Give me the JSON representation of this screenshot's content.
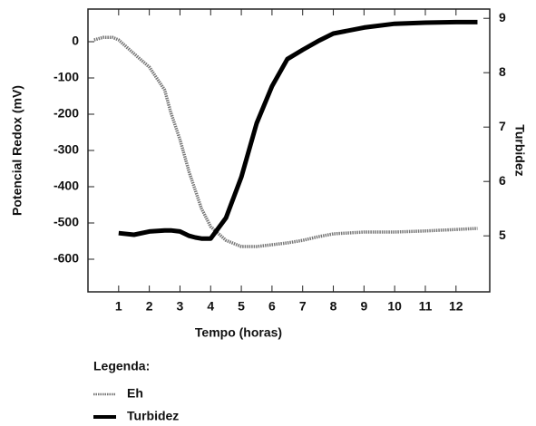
{
  "chart_data": {
    "type": "line",
    "xlabel": "Tempo (horas)",
    "ylabel": "Potencial Redox (mV)",
    "y2label": "Turbidez",
    "legend_title": "Legenda:",
    "x": [
      0.2,
      0.5,
      0.8,
      1,
      1.5,
      2,
      2.5,
      2.7,
      3,
      3.3,
      3.5,
      3.7,
      4,
      4.5,
      5,
      5.5,
      6,
      6.5,
      7,
      7.5,
      8,
      9,
      10,
      11,
      12,
      12.7
    ],
    "series": [
      {
        "name": "Eh",
        "color": "#777777",
        "values": [
          5,
          12,
          12,
          5,
          -33,
          -70,
          -133,
          -195,
          -270,
          -360,
          -410,
          -460,
          -510,
          -548,
          -565,
          -565,
          -560,
          -555,
          -548,
          -538,
          -530,
          -525,
          -525,
          -522,
          -518,
          -515
        ]
      },
      {
        "name": "Turbidez",
        "color": "#000000",
        "axis": "y2",
        "values": [
          null,
          null,
          null,
          5.05,
          5.02,
          5.08,
          5.1,
          5.1,
          5.08,
          5.0,
          4.97,
          4.95,
          4.95,
          5.33,
          6.08,
          7.07,
          7.75,
          8.25,
          8.42,
          8.58,
          8.72,
          8.83,
          8.9,
          8.92,
          8.93,
          8.93
        ]
      }
    ],
    "xlim": [
      0,
      13.1
    ],
    "xticks": [
      1,
      2,
      3,
      4,
      5,
      6,
      7,
      8,
      9,
      10,
      11,
      12
    ],
    "ylim": [
      -690,
      90
    ],
    "yticks": [
      0,
      -100,
      -200,
      -300,
      -400,
      -500,
      -600
    ],
    "y2lim": [
      3.97,
      9.17
    ],
    "y2ticks": [
      5,
      6,
      7,
      8,
      9
    ]
  }
}
